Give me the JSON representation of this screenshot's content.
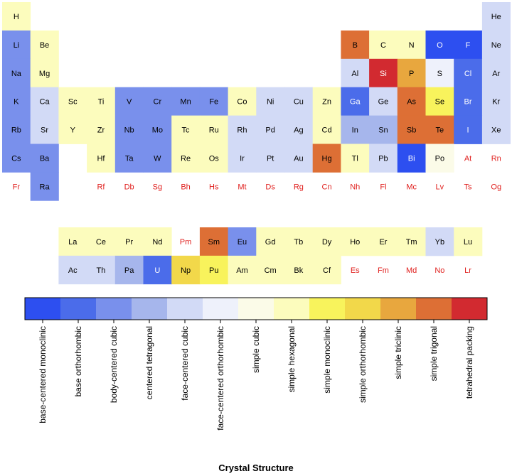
{
  "chart_data": {
    "type": "heatmap",
    "title": "",
    "legend_title": "Crystal Structure",
    "categories": [
      "base-centered monoclinic",
      "base orthorhombic",
      "body-centered cubic",
      "centered tetragonal",
      "face-centered cubic",
      "face-centered orthorhombic",
      "simple cubic",
      "simple hexagonal",
      "simple monoclinic",
      "simple orthorhombic",
      "simple triclinic",
      "simple trigonal",
      "tetrahedral packing"
    ],
    "category_colors": [
      "#2d4ff0",
      "#4b6cea",
      "#7990ec",
      "#a6b6ec",
      "#d2daf6",
      "#eef1fb",
      "#fbfbe8",
      "#fcfcbd",
      "#f8f35c",
      "#f2d84a",
      "#e8a73e",
      "#dd6f35",
      "#d22a30"
    ],
    "missing_text_color": "#e0201e",
    "elements": [
      {
        "s": "H",
        "r": 0,
        "c": 0,
        "k": 7
      },
      {
        "s": "He",
        "r": 0,
        "c": 17,
        "k": 4
      },
      {
        "s": "Li",
        "r": 1,
        "c": 0,
        "k": 2
      },
      {
        "s": "Be",
        "r": 1,
        "c": 1,
        "k": 7
      },
      {
        "s": "B",
        "r": 1,
        "c": 12,
        "k": 11
      },
      {
        "s": "C",
        "r": 1,
        "c": 13,
        "k": 7
      },
      {
        "s": "N",
        "r": 1,
        "c": 14,
        "k": 7
      },
      {
        "s": "O",
        "r": 1,
        "c": 15,
        "k": 0
      },
      {
        "s": "F",
        "r": 1,
        "c": 16,
        "k": 0
      },
      {
        "s": "Ne",
        "r": 1,
        "c": 17,
        "k": 4
      },
      {
        "s": "Na",
        "r": 2,
        "c": 0,
        "k": 2
      },
      {
        "s": "Mg",
        "r": 2,
        "c": 1,
        "k": 7
      },
      {
        "s": "Al",
        "r": 2,
        "c": 12,
        "k": 4
      },
      {
        "s": "Si",
        "r": 2,
        "c": 13,
        "k": 12
      },
      {
        "s": "P",
        "r": 2,
        "c": 14,
        "k": 10
      },
      {
        "s": "S",
        "r": 2,
        "c": 15,
        "k": 5
      },
      {
        "s": "Cl",
        "r": 2,
        "c": 16,
        "k": 1
      },
      {
        "s": "Ar",
        "r": 2,
        "c": 17,
        "k": 4
      },
      {
        "s": "K",
        "r": 3,
        "c": 0,
        "k": 2
      },
      {
        "s": "Ca",
        "r": 3,
        "c": 1,
        "k": 4
      },
      {
        "s": "Sc",
        "r": 3,
        "c": 2,
        "k": 7
      },
      {
        "s": "Ti",
        "r": 3,
        "c": 3,
        "k": 7
      },
      {
        "s": "V",
        "r": 3,
        "c": 4,
        "k": 2
      },
      {
        "s": "Cr",
        "r": 3,
        "c": 5,
        "k": 2
      },
      {
        "s": "Mn",
        "r": 3,
        "c": 6,
        "k": 2
      },
      {
        "s": "Fe",
        "r": 3,
        "c": 7,
        "k": 2
      },
      {
        "s": "Co",
        "r": 3,
        "c": 8,
        "k": 7
      },
      {
        "s": "Ni",
        "r": 3,
        "c": 9,
        "k": 4
      },
      {
        "s": "Cu",
        "r": 3,
        "c": 10,
        "k": 4
      },
      {
        "s": "Zn",
        "r": 3,
        "c": 11,
        "k": 7
      },
      {
        "s": "Ga",
        "r": 3,
        "c": 12,
        "k": 1
      },
      {
        "s": "Ge",
        "r": 3,
        "c": 13,
        "k": 4
      },
      {
        "s": "As",
        "r": 3,
        "c": 14,
        "k": 11
      },
      {
        "s": "Se",
        "r": 3,
        "c": 15,
        "k": 8
      },
      {
        "s": "Br",
        "r": 3,
        "c": 16,
        "k": 1
      },
      {
        "s": "Kr",
        "r": 3,
        "c": 17,
        "k": 4
      },
      {
        "s": "Rb",
        "r": 4,
        "c": 0,
        "k": 2
      },
      {
        "s": "Sr",
        "r": 4,
        "c": 1,
        "k": 4
      },
      {
        "s": "Y",
        "r": 4,
        "c": 2,
        "k": 7
      },
      {
        "s": "Zr",
        "r": 4,
        "c": 3,
        "k": 7
      },
      {
        "s": "Nb",
        "r": 4,
        "c": 4,
        "k": 2
      },
      {
        "s": "Mo",
        "r": 4,
        "c": 5,
        "k": 2
      },
      {
        "s": "Tc",
        "r": 4,
        "c": 6,
        "k": 7
      },
      {
        "s": "Ru",
        "r": 4,
        "c": 7,
        "k": 7
      },
      {
        "s": "Rh",
        "r": 4,
        "c": 8,
        "k": 4
      },
      {
        "s": "Pd",
        "r": 4,
        "c": 9,
        "k": 4
      },
      {
        "s": "Ag",
        "r": 4,
        "c": 10,
        "k": 4
      },
      {
        "s": "Cd",
        "r": 4,
        "c": 11,
        "k": 7
      },
      {
        "s": "In",
        "r": 4,
        "c": 12,
        "k": 3
      },
      {
        "s": "Sn",
        "r": 4,
        "c": 13,
        "k": 3
      },
      {
        "s": "Sb",
        "r": 4,
        "c": 14,
        "k": 11
      },
      {
        "s": "Te",
        "r": 4,
        "c": 15,
        "k": 11
      },
      {
        "s": "I",
        "r": 4,
        "c": 16,
        "k": 1
      },
      {
        "s": "Xe",
        "r": 4,
        "c": 17,
        "k": 4
      },
      {
        "s": "Cs",
        "r": 5,
        "c": 0,
        "k": 2
      },
      {
        "s": "Ba",
        "r": 5,
        "c": 1,
        "k": 2
      },
      {
        "s": "Hf",
        "r": 5,
        "c": 3,
        "k": 7
      },
      {
        "s": "Ta",
        "r": 5,
        "c": 4,
        "k": 2
      },
      {
        "s": "W",
        "r": 5,
        "c": 5,
        "k": 2
      },
      {
        "s": "Re",
        "r": 5,
        "c": 6,
        "k": 7
      },
      {
        "s": "Os",
        "r": 5,
        "c": 7,
        "k": 7
      },
      {
        "s": "Ir",
        "r": 5,
        "c": 8,
        "k": 4
      },
      {
        "s": "Pt",
        "r": 5,
        "c": 9,
        "k": 4
      },
      {
        "s": "Au",
        "r": 5,
        "c": 10,
        "k": 4
      },
      {
        "s": "Hg",
        "r": 5,
        "c": 11,
        "k": 11
      },
      {
        "s": "Tl",
        "r": 5,
        "c": 12,
        "k": 7
      },
      {
        "s": "Pb",
        "r": 5,
        "c": 13,
        "k": 4
      },
      {
        "s": "Bi",
        "r": 5,
        "c": 14,
        "k": 0
      },
      {
        "s": "Po",
        "r": 5,
        "c": 15,
        "k": 6
      },
      {
        "s": "At",
        "r": 5,
        "c": 16,
        "k": null
      },
      {
        "s": "Rn",
        "r": 5,
        "c": 17,
        "k": null
      },
      {
        "s": "Fr",
        "r": 6,
        "c": 0,
        "k": null
      },
      {
        "s": "Ra",
        "r": 6,
        "c": 1,
        "k": 2
      },
      {
        "s": "Rf",
        "r": 6,
        "c": 3,
        "k": null
      },
      {
        "s": "Db",
        "r": 6,
        "c": 4,
        "k": null
      },
      {
        "s": "Sg",
        "r": 6,
        "c": 5,
        "k": null
      },
      {
        "s": "Bh",
        "r": 6,
        "c": 6,
        "k": null
      },
      {
        "s": "Hs",
        "r": 6,
        "c": 7,
        "k": null
      },
      {
        "s": "Mt",
        "r": 6,
        "c": 8,
        "k": null
      },
      {
        "s": "Ds",
        "r": 6,
        "c": 9,
        "k": null
      },
      {
        "s": "Rg",
        "r": 6,
        "c": 10,
        "k": null
      },
      {
        "s": "Cn",
        "r": 6,
        "c": 11,
        "k": null
      },
      {
        "s": "Nh",
        "r": 6,
        "c": 12,
        "k": null
      },
      {
        "s": "Fl",
        "r": 6,
        "c": 13,
        "k": null
      },
      {
        "s": "Mc",
        "r": 6,
        "c": 14,
        "k": null
      },
      {
        "s": "Lv",
        "r": 6,
        "c": 15,
        "k": null
      },
      {
        "s": "Ts",
        "r": 6,
        "c": 16,
        "k": null
      },
      {
        "s": "Og",
        "r": 6,
        "c": 17,
        "k": null
      },
      {
        "s": "La",
        "r": 8,
        "c": 2,
        "k": 7
      },
      {
        "s": "Ce",
        "r": 8,
        "c": 3,
        "k": 7
      },
      {
        "s": "Pr",
        "r": 8,
        "c": 4,
        "k": 7
      },
      {
        "s": "Nd",
        "r": 8,
        "c": 5,
        "k": 7
      },
      {
        "s": "Pm",
        "r": 8,
        "c": 6,
        "k": null
      },
      {
        "s": "Sm",
        "r": 8,
        "c": 7,
        "k": 11
      },
      {
        "s": "Eu",
        "r": 8,
        "c": 8,
        "k": 2
      },
      {
        "s": "Gd",
        "r": 8,
        "c": 9,
        "k": 7
      },
      {
        "s": "Tb",
        "r": 8,
        "c": 10,
        "k": 7
      },
      {
        "s": "Dy",
        "r": 8,
        "c": 11,
        "k": 7
      },
      {
        "s": "Ho",
        "r": 8,
        "c": 12,
        "k": 7
      },
      {
        "s": "Er",
        "r": 8,
        "c": 13,
        "k": 7
      },
      {
        "s": "Tm",
        "r": 8,
        "c": 14,
        "k": 7
      },
      {
        "s": "Yb",
        "r": 8,
        "c": 15,
        "k": 4
      },
      {
        "s": "Lu",
        "r": 8,
        "c": 16,
        "k": 7
      },
      {
        "s": "Ac",
        "r": 9,
        "c": 2,
        "k": 4
      },
      {
        "s": "Th",
        "r": 9,
        "c": 3,
        "k": 4
      },
      {
        "s": "Pa",
        "r": 9,
        "c": 4,
        "k": 3
      },
      {
        "s": "U",
        "r": 9,
        "c": 5,
        "k": 1
      },
      {
        "s": "Np",
        "r": 9,
        "c": 6,
        "k": 9
      },
      {
        "s": "Pu",
        "r": 9,
        "c": 7,
        "k": 8
      },
      {
        "s": "Am",
        "r": 9,
        "c": 8,
        "k": 7
      },
      {
        "s": "Cm",
        "r": 9,
        "c": 9,
        "k": 7
      },
      {
        "s": "Bk",
        "r": 9,
        "c": 10,
        "k": 7
      },
      {
        "s": "Cf",
        "r": 9,
        "c": 11,
        "k": 7
      },
      {
        "s": "Es",
        "r": 9,
        "c": 12,
        "k": null
      },
      {
        "s": "Fm",
        "r": 9,
        "c": 13,
        "k": null
      },
      {
        "s": "Md",
        "r": 9,
        "c": 14,
        "k": null
      },
      {
        "s": "No",
        "r": 9,
        "c": 15,
        "k": null
      },
      {
        "s": "Lr",
        "r": 9,
        "c": 16,
        "k": null
      }
    ]
  }
}
